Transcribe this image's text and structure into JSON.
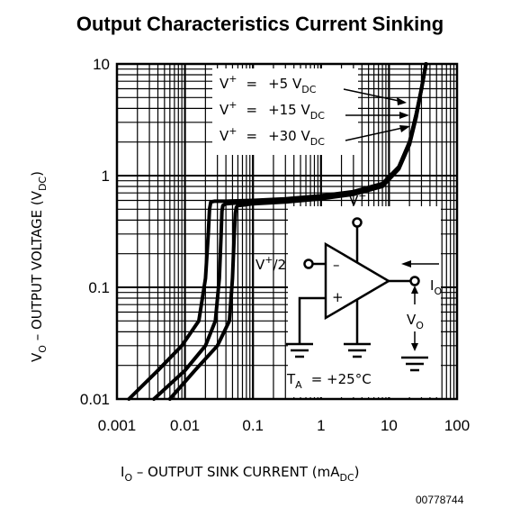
{
  "chart_data": {
    "type": "line",
    "title": "Output Characteristics Current Sinking",
    "xlabel": {
      "main": "I",
      "sub": "O",
      "rest": " – OUTPUT SINK CURRENT (mA",
      "unit_sub": "DC",
      "close": ")"
    },
    "ylabel": {
      "main": "V",
      "sub": "O",
      "rest": " – OUTPUT VOLTAGE (V",
      "unit_sub": "DC",
      "close": ")"
    },
    "xscale": "log",
    "yscale": "log",
    "xlim": [
      0.001,
      100
    ],
    "ylim": [
      0.01,
      10
    ],
    "xticks": [
      "0.001",
      "0.01",
      "0.1",
      "1",
      "10",
      "100"
    ],
    "yticks": [
      "10",
      "1",
      "0.1",
      "0.01"
    ],
    "grid": true,
    "series": [
      {
        "name": "V+ = +5 VDC",
        "x": [
          0.0015,
          0.004,
          0.009,
          0.016,
          0.02,
          0.022,
          0.023,
          0.024,
          0.027,
          0.04,
          0.1,
          0.3,
          1,
          3,
          8,
          14,
          20,
          25,
          30,
          35
        ],
        "y": [
          0.01,
          0.018,
          0.03,
          0.05,
          0.12,
          0.3,
          0.5,
          0.58,
          0.59,
          0.59,
          0.6,
          0.62,
          0.66,
          0.72,
          0.85,
          1.2,
          2,
          3.5,
          6,
          10
        ]
      },
      {
        "name": "V+ = +15 VDC",
        "x": [
          0.0035,
          0.01,
          0.02,
          0.028,
          0.032,
          0.034,
          0.035,
          0.036,
          0.04,
          0.06,
          0.1,
          0.3,
          1,
          3,
          8,
          14,
          20,
          25,
          30,
          35
        ],
        "y": [
          0.01,
          0.018,
          0.03,
          0.05,
          0.12,
          0.3,
          0.48,
          0.54,
          0.56,
          0.57,
          0.58,
          0.6,
          0.64,
          0.7,
          0.82,
          1.2,
          2,
          3.5,
          6,
          10
        ]
      },
      {
        "name": "V+ = +30 VDC",
        "x": [
          0.006,
          0.014,
          0.03,
          0.045,
          0.05,
          0.053,
          0.055,
          0.057,
          0.06,
          0.08,
          0.1,
          0.3,
          1,
          3,
          8,
          14,
          20,
          25,
          30,
          35
        ],
        "y": [
          0.01,
          0.018,
          0.03,
          0.05,
          0.12,
          0.3,
          0.46,
          0.52,
          0.54,
          0.55,
          0.56,
          0.58,
          0.62,
          0.68,
          0.8,
          1.15,
          1.9,
          3.3,
          6,
          10
        ]
      }
    ],
    "legend_entries": [
      {
        "vplus": "V",
        "sup": "+",
        "eq": "=",
        "value": "+5 V",
        "sub": "DC"
      },
      {
        "vplus": "V",
        "sup": "+",
        "eq": "=",
        "value": "+15 V",
        "sub": "DC"
      },
      {
        "vplus": "V",
        "sup": "+",
        "eq": "=",
        "value": "+30 V",
        "sub": "DC"
      }
    ],
    "inset": {
      "supply_label": "V",
      "supply_sup": "+",
      "input_label": "V",
      "input_sup": "+",
      "input_rest": "/2",
      "minus": "–",
      "plus": "+",
      "current_label": "I",
      "current_sub": "O",
      "vout_label": "V",
      "vout_sub": "O",
      "temp_label": "T",
      "temp_sub": "A",
      "temp_value": "= +25°C"
    }
  },
  "figure_number": "00778744"
}
